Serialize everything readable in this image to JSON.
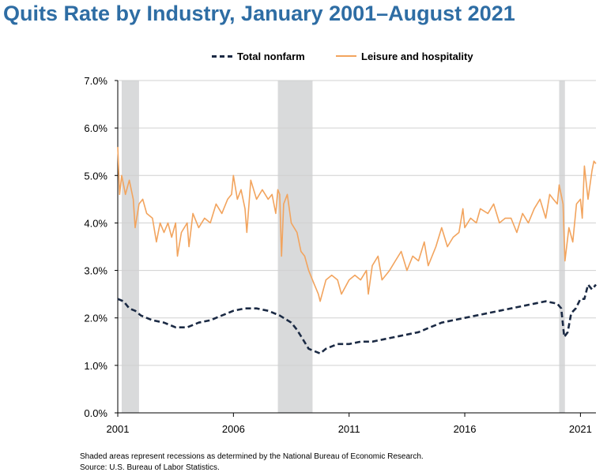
{
  "title": "Quits Rate by Industry, January 2001–August 2021",
  "notes": [
    "Shaded areas represent recessions as determined by the National Bureau of Economic Research.",
    "Source: U.S. Bureau of Labor Statistics."
  ],
  "colors": {
    "title": "#2E6DA4",
    "total_nonfarm": "#1B2A44",
    "leisure": "#F2A45E",
    "recession": "#D9DADB",
    "grid": "#D0D0D0"
  },
  "chart_data": {
    "type": "line",
    "xlabel": "",
    "ylabel": "",
    "xlim": [
      2001.0,
      2021.67
    ],
    "ylim": [
      0,
      7
    ],
    "x_ticks": [
      2001,
      2006,
      2011,
      2016,
      2021
    ],
    "x_tick_labels": [
      "2001",
      "2006",
      "2011",
      "2016",
      "2021"
    ],
    "y_ticks": [
      0,
      1,
      2,
      3,
      4,
      5,
      6,
      7
    ],
    "y_tick_labels": [
      "0.0%",
      "1.0%",
      "2.0%",
      "3.0%",
      "4.0%",
      "5.0%",
      "6.0%",
      "7.0%"
    ],
    "grid": true,
    "legend_position": "top",
    "recessions": [
      [
        2001.17,
        2001.92
      ],
      [
        2007.92,
        2009.42
      ],
      [
        2020.08,
        2020.33
      ]
    ],
    "series": [
      {
        "name": "Total nonfarm",
        "style": "dashed",
        "points": [
          [
            2001.0,
            2.4
          ],
          [
            2001.25,
            2.35
          ],
          [
            2001.5,
            2.2
          ],
          [
            2001.75,
            2.15
          ],
          [
            2002.0,
            2.05
          ],
          [
            2002.5,
            1.95
          ],
          [
            2003.0,
            1.9
          ],
          [
            2003.5,
            1.8
          ],
          [
            2004.0,
            1.8
          ],
          [
            2004.5,
            1.9
          ],
          [
            2005.0,
            1.95
          ],
          [
            2005.5,
            2.05
          ],
          [
            2006.0,
            2.15
          ],
          [
            2006.5,
            2.2
          ],
          [
            2007.0,
            2.2
          ],
          [
            2007.5,
            2.15
          ],
          [
            2008.0,
            2.05
          ],
          [
            2008.5,
            1.9
          ],
          [
            2008.75,
            1.75
          ],
          [
            2009.0,
            1.55
          ],
          [
            2009.25,
            1.35
          ],
          [
            2009.5,
            1.3
          ],
          [
            2009.75,
            1.25
          ],
          [
            2010.0,
            1.35
          ],
          [
            2010.5,
            1.45
          ],
          [
            2011.0,
            1.45
          ],
          [
            2011.5,
            1.5
          ],
          [
            2012.0,
            1.5
          ],
          [
            2012.5,
            1.55
          ],
          [
            2013.0,
            1.6
          ],
          [
            2013.5,
            1.65
          ],
          [
            2014.0,
            1.7
          ],
          [
            2014.5,
            1.8
          ],
          [
            2015.0,
            1.9
          ],
          [
            2015.5,
            1.95
          ],
          [
            2016.0,
            2.0
          ],
          [
            2016.5,
            2.05
          ],
          [
            2017.0,
            2.1
          ],
          [
            2017.5,
            2.15
          ],
          [
            2018.0,
            2.2
          ],
          [
            2018.5,
            2.25
          ],
          [
            2019.0,
            2.3
          ],
          [
            2019.5,
            2.35
          ],
          [
            2020.0,
            2.3
          ],
          [
            2020.17,
            2.2
          ],
          [
            2020.3,
            1.6
          ],
          [
            2020.45,
            1.7
          ],
          [
            2020.6,
            2.1
          ],
          [
            2020.8,
            2.2
          ],
          [
            2021.0,
            2.4
          ],
          [
            2021.17,
            2.4
          ],
          [
            2021.33,
            2.7
          ],
          [
            2021.5,
            2.6
          ],
          [
            2021.67,
            2.7
          ]
        ]
      },
      {
        "name": "Leisure and hospitality",
        "style": "solid",
        "points": [
          [
            2001.0,
            5.6
          ],
          [
            2001.08,
            4.6
          ],
          [
            2001.17,
            5.0
          ],
          [
            2001.33,
            4.6
          ],
          [
            2001.5,
            4.9
          ],
          [
            2001.67,
            4.5
          ],
          [
            2001.75,
            3.9
          ],
          [
            2001.92,
            4.4
          ],
          [
            2002.08,
            4.5
          ],
          [
            2002.25,
            4.2
          ],
          [
            2002.5,
            4.1
          ],
          [
            2002.67,
            3.6
          ],
          [
            2002.83,
            4.0
          ],
          [
            2003.0,
            3.8
          ],
          [
            2003.17,
            4.0
          ],
          [
            2003.33,
            3.7
          ],
          [
            2003.5,
            4.0
          ],
          [
            2003.58,
            3.3
          ],
          [
            2003.75,
            3.8
          ],
          [
            2004.0,
            4.0
          ],
          [
            2004.08,
            3.5
          ],
          [
            2004.25,
            4.2
          ],
          [
            2004.5,
            3.9
          ],
          [
            2004.75,
            4.1
          ],
          [
            2005.0,
            4.0
          ],
          [
            2005.25,
            4.4
          ],
          [
            2005.5,
            4.2
          ],
          [
            2005.75,
            4.5
          ],
          [
            2005.92,
            4.6
          ],
          [
            2006.0,
            5.0
          ],
          [
            2006.17,
            4.5
          ],
          [
            2006.33,
            4.7
          ],
          [
            2006.5,
            4.3
          ],
          [
            2006.58,
            3.8
          ],
          [
            2006.75,
            4.9
          ],
          [
            2007.0,
            4.5
          ],
          [
            2007.25,
            4.7
          ],
          [
            2007.5,
            4.5
          ],
          [
            2007.67,
            4.6
          ],
          [
            2007.83,
            4.2
          ],
          [
            2007.92,
            4.7
          ],
          [
            2008.0,
            4.6
          ],
          [
            2008.08,
            3.3
          ],
          [
            2008.17,
            4.4
          ],
          [
            2008.33,
            4.6
          ],
          [
            2008.5,
            4.0
          ],
          [
            2008.75,
            3.8
          ],
          [
            2008.92,
            3.4
          ],
          [
            2009.08,
            3.3
          ],
          [
            2009.25,
            3.0
          ],
          [
            2009.5,
            2.7
          ],
          [
            2009.67,
            2.5
          ],
          [
            2009.75,
            2.35
          ],
          [
            2010.0,
            2.8
          ],
          [
            2010.25,
            2.9
          ],
          [
            2010.5,
            2.8
          ],
          [
            2010.67,
            2.5
          ],
          [
            2011.0,
            2.8
          ],
          [
            2011.25,
            2.9
          ],
          [
            2011.5,
            2.8
          ],
          [
            2011.75,
            3.0
          ],
          [
            2011.83,
            2.5
          ],
          [
            2012.0,
            3.1
          ],
          [
            2012.25,
            3.3
          ],
          [
            2012.42,
            2.8
          ],
          [
            2012.75,
            3.0
          ],
          [
            2013.0,
            3.2
          ],
          [
            2013.25,
            3.4
          ],
          [
            2013.5,
            3.0
          ],
          [
            2013.75,
            3.3
          ],
          [
            2014.0,
            3.2
          ],
          [
            2014.25,
            3.6
          ],
          [
            2014.42,
            3.1
          ],
          [
            2014.75,
            3.5
          ],
          [
            2015.0,
            3.9
          ],
          [
            2015.25,
            3.5
          ],
          [
            2015.5,
            3.7
          ],
          [
            2015.75,
            3.8
          ],
          [
            2015.92,
            4.3
          ],
          [
            2016.0,
            3.9
          ],
          [
            2016.25,
            4.1
          ],
          [
            2016.5,
            4.0
          ],
          [
            2016.67,
            4.3
          ],
          [
            2017.0,
            4.2
          ],
          [
            2017.25,
            4.4
          ],
          [
            2017.5,
            4.0
          ],
          [
            2017.75,
            4.1
          ],
          [
            2018.0,
            4.1
          ],
          [
            2018.25,
            3.8
          ],
          [
            2018.5,
            4.2
          ],
          [
            2018.75,
            4.0
          ],
          [
            2019.0,
            4.3
          ],
          [
            2019.25,
            4.5
          ],
          [
            2019.5,
            4.1
          ],
          [
            2019.67,
            4.6
          ],
          [
            2019.83,
            4.5
          ],
          [
            2020.0,
            4.4
          ],
          [
            2020.08,
            4.8
          ],
          [
            2020.25,
            4.4
          ],
          [
            2020.33,
            3.2
          ],
          [
            2020.5,
            3.9
          ],
          [
            2020.67,
            3.6
          ],
          [
            2020.83,
            4.4
          ],
          [
            2021.0,
            4.5
          ],
          [
            2021.08,
            4.1
          ],
          [
            2021.17,
            5.2
          ],
          [
            2021.33,
            4.5
          ],
          [
            2021.5,
            5.1
          ],
          [
            2021.58,
            5.3
          ],
          [
            2021.67,
            5.25
          ]
        ]
      }
    ]
  }
}
